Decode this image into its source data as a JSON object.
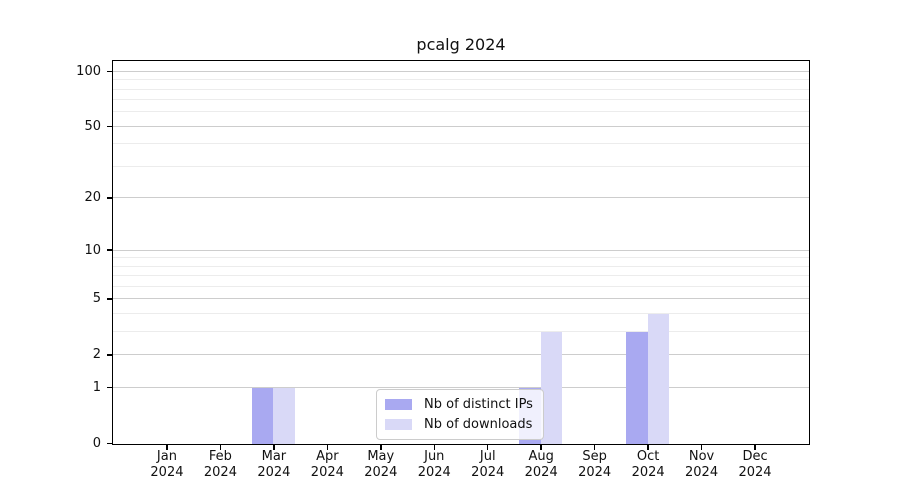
{
  "title": "pcalg 2024",
  "chart_data": {
    "type": "bar",
    "title": "pcalg 2024",
    "categories": [
      "Jan",
      "Feb",
      "Mar",
      "Apr",
      "May",
      "Jun",
      "Jul",
      "Aug",
      "Sep",
      "Oct",
      "Nov",
      "Dec"
    ],
    "category_year": "2024",
    "series": [
      {
        "name": "Nb of distinct IPs",
        "color": "#a9a9f1",
        "values": [
          0,
          0,
          1,
          0,
          0,
          0,
          0,
          1,
          0,
          3,
          0,
          0
        ]
      },
      {
        "name": "Nb of downloads",
        "color": "#d9d9f7",
        "values": [
          0,
          0,
          1,
          0,
          0,
          0,
          0,
          3,
          0,
          4,
          0,
          0
        ]
      }
    ],
    "xlabel": "",
    "ylabel": "",
    "yscale": "log10(1+x)",
    "ylim": [
      0,
      113
    ],
    "yticks": [
      0,
      1,
      2,
      5,
      10,
      20,
      50,
      100
    ],
    "grid_minor_ticks": [
      3,
      4,
      6,
      7,
      8,
      9,
      30,
      40,
      60,
      70,
      80,
      90
    ],
    "grid": "on",
    "legend_position": "lower center",
    "colors": {
      "major_grid": "#cdcdcd",
      "minor_grid": "#ececec",
      "spine": "#000000",
      "text": "#111111",
      "background": "#ffffff"
    }
  }
}
